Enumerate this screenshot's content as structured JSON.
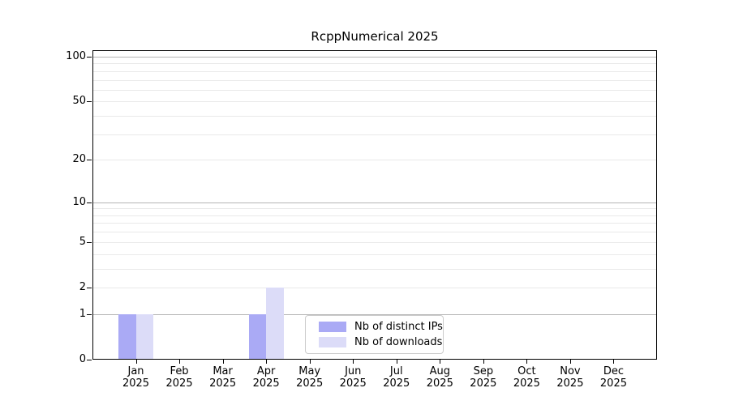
{
  "title": "RcppNumerical 2025",
  "colors": {
    "distinct_ips": "#aaaaf5",
    "downloads": "#dcdcf8",
    "grid_major": "#b4b4b4",
    "grid_minor": "#e9e9e9",
    "axis": "#000000",
    "legend_border": "#cccccc",
    "text": "#000000"
  },
  "legend": {
    "items": [
      {
        "label": "Nb of distinct IPs"
      },
      {
        "label": "Nb of downloads"
      }
    ]
  },
  "chart_data": {
    "type": "bar",
    "title": "RcppNumerical 2025",
    "categories": [
      "Jan 2025",
      "Feb 2025",
      "Mar 2025",
      "Apr 2025",
      "May 2025",
      "Jun 2025",
      "Jul 2025",
      "Aug 2025",
      "Sep 2025",
      "Oct 2025",
      "Nov 2025",
      "Dec 2025"
    ],
    "series": [
      {
        "name": "Nb of distinct IPs",
        "color": "#aaaaf5",
        "values": [
          1,
          0,
          0,
          1,
          0,
          0,
          0,
          0,
          0,
          0,
          0,
          0
        ]
      },
      {
        "name": "Nb of downloads",
        "color": "#dcdcf8",
        "values": [
          1,
          0,
          0,
          2,
          0,
          0,
          0,
          0,
          0,
          0,
          0,
          0
        ]
      }
    ],
    "xlabel": "",
    "ylabel": "",
    "y_scale": "log1p",
    "ylim": [
      0,
      110
    ],
    "y_tick_values": [
      0,
      1,
      2,
      5,
      10,
      20,
      50,
      100
    ],
    "y_major_gridlines": [
      1,
      10,
      100
    ],
    "y_minor_gridlines": [
      2,
      3,
      4,
      5,
      6,
      7,
      8,
      9,
      20,
      30,
      40,
      50,
      60,
      70,
      80,
      90
    ],
    "grid": true,
    "legend_position": "bottom-center"
  }
}
